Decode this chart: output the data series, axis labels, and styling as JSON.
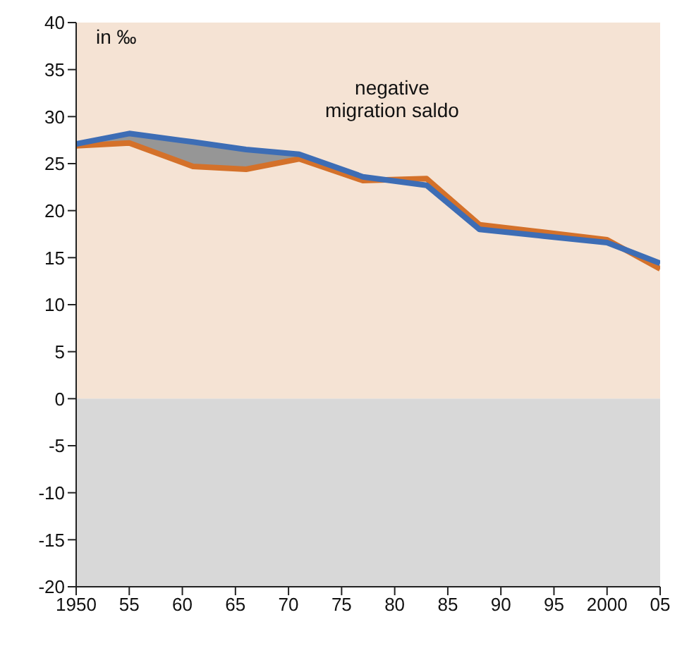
{
  "chart_data": {
    "type": "line",
    "x": [
      1950,
      1955,
      1961,
      1966,
      1971,
      1977,
      1983,
      1988,
      1994,
      2000,
      2005
    ],
    "series": [
      {
        "color": "#d4712a",
        "values": [
          26.9,
          27.2,
          24.7,
          24.4,
          25.5,
          23.2,
          23.4,
          18.5,
          17.7,
          16.9,
          13.8
        ]
      },
      {
        "color": "#3d6db5",
        "values": [
          27.1,
          28.2,
          27.3,
          26.5,
          26.0,
          23.6,
          22.7,
          18.0,
          17.3,
          16.6,
          14.4
        ],
        "lower": [
          26.9,
          27.2,
          24.7,
          24.4,
          25.5,
          null,
          null,
          null,
          null,
          null,
          null
        ],
        "upper": [
          27.1,
          28.2,
          27.3,
          26.5,
          26.0,
          null,
          null,
          null,
          null,
          null,
          null
        ]
      }
    ],
    "xlim": [
      1950,
      2005
    ],
    "xticks": [
      1950,
      {
        "value": 1955,
        "label": "55"
      },
      {
        "value": 1960,
        "label": "60"
      },
      {
        "value": 1965,
        "label": "65"
      },
      {
        "value": 1970,
        "label": "70"
      },
      {
        "value": 1975,
        "label": "75"
      },
      {
        "value": 1980,
        "label": "80"
      },
      {
        "value": 1985,
        "label": "85"
      },
      {
        "value": 1990,
        "label": "90"
      },
      {
        "value": 1995,
        "label": "95"
      },
      2000,
      {
        "value": 2005,
        "label": "05"
      }
    ],
    "ylim": [
      -20,
      40
    ],
    "yticks": [
      -20,
      -15,
      -10,
      -5,
      0,
      5,
      10,
      15,
      20,
      25,
      30,
      35,
      40
    ],
    "bands": [
      {
        "axis": "y",
        "from": 0,
        "to": 40,
        "color": "#f5e3d4"
      },
      {
        "axis": "y",
        "from": -20,
        "to": 0,
        "color": "#d8d8d8"
      }
    ],
    "annotations": [
      "in ‰",
      "negative migration saldo"
    ],
    "grid": false,
    "legend": false,
    "marker": "none",
    "line_style": "solid"
  }
}
